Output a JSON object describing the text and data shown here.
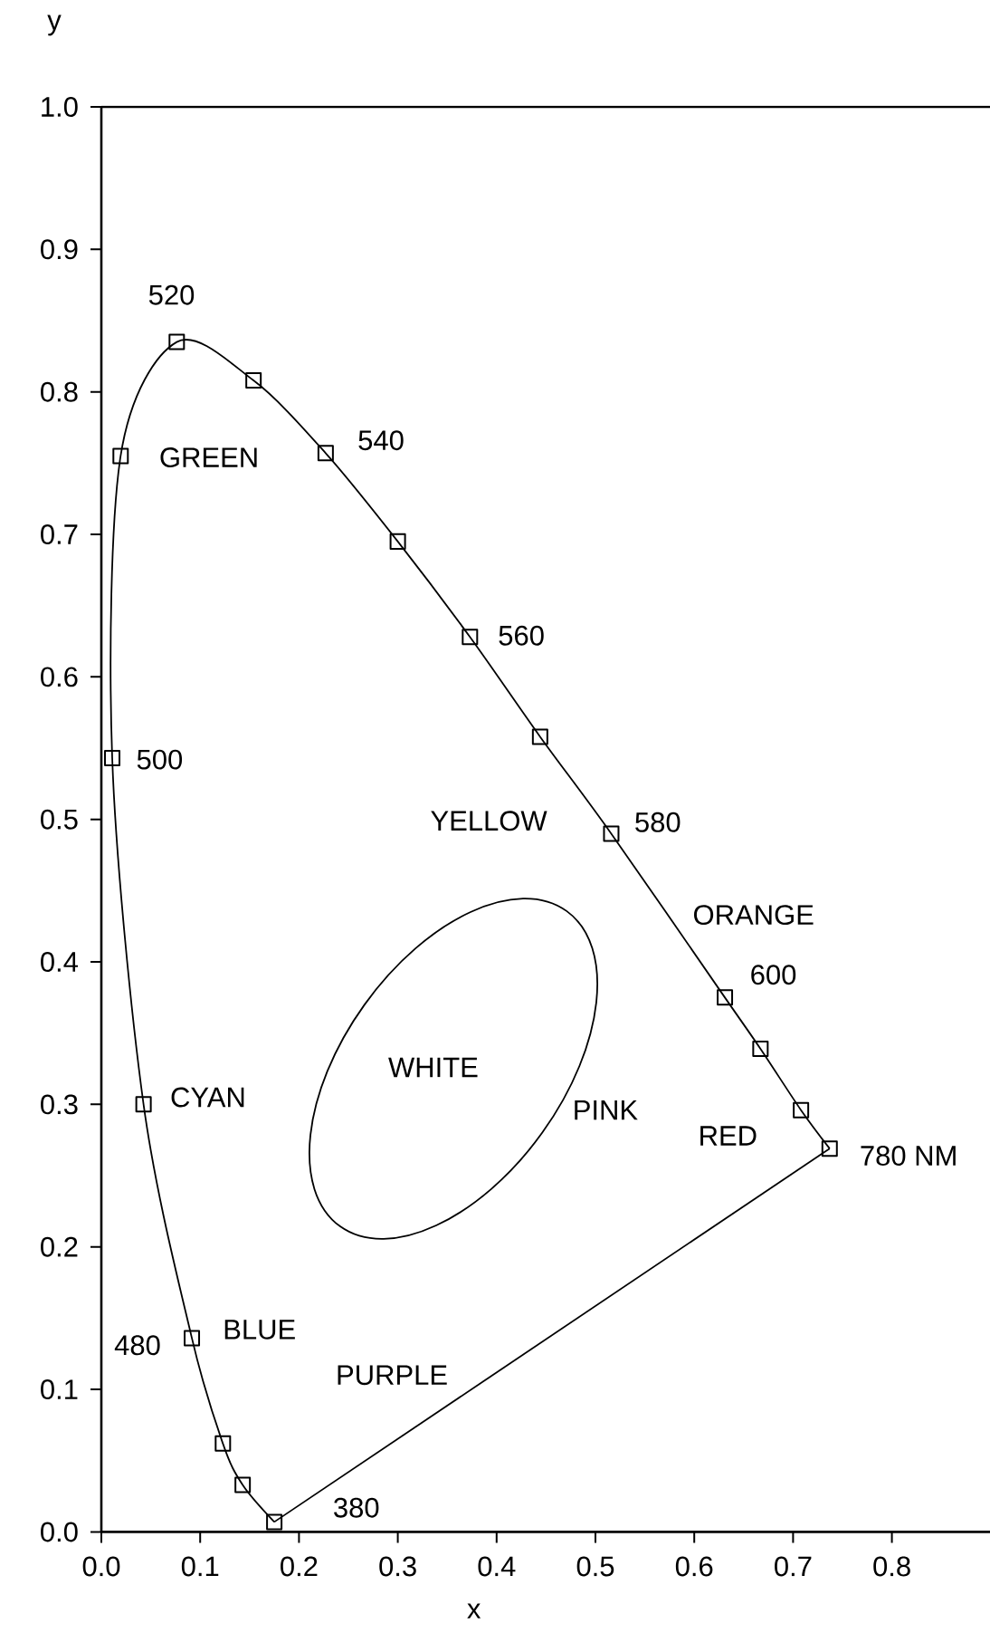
{
  "chart_data": {
    "type": "line",
    "xlabel": "x",
    "ylabel": "y",
    "xlim": [
      0,
      0.9
    ],
    "ylim": [
      0,
      1
    ],
    "xticks": [
      {
        "value": 0,
        "label": "0.0"
      },
      0.1,
      0.2,
      0.3,
      0.4,
      0.5,
      0.6,
      0.7,
      0.8
    ],
    "yticks": [
      {
        "value": 0,
        "label": "0.0"
      },
      0.1,
      0.2,
      0.3,
      0.4,
      0.5,
      0.6,
      0.7,
      0.8,
      0.9,
      {
        "value": 1,
        "label": "1.0"
      }
    ],
    "series": [
      {
        "marker": "square",
        "color": "#000000",
        "x": [
          0.175,
          0.143,
          0.123,
          0.0916,
          0.0427,
          0.011,
          0.0195,
          0.0763,
          0.154,
          0.227,
          0.3,
          0.373,
          0.444,
          0.516,
          0.631,
          0.667,
          0.708,
          0.737
        ],
        "values": [
          0.007,
          0.033,
          0.062,
          0.136,
          0.3,
          0.543,
          0.755,
          0.835,
          0.808,
          0.757,
          0.695,
          0.628,
          0.558,
          0.49,
          0.375,
          0.339,
          0.296,
          0.269
        ]
      }
    ],
    "annotations": [
      "520",
      "GREEN",
      "540",
      "560",
      "500",
      "YELLOW",
      "580",
      "ORANGE",
      "600",
      "WHITE",
      "CYAN",
      "PINK",
      "RED",
      "780  NM",
      "480",
      "BLUE",
      "PURPLE",
      "380"
    ]
  }
}
